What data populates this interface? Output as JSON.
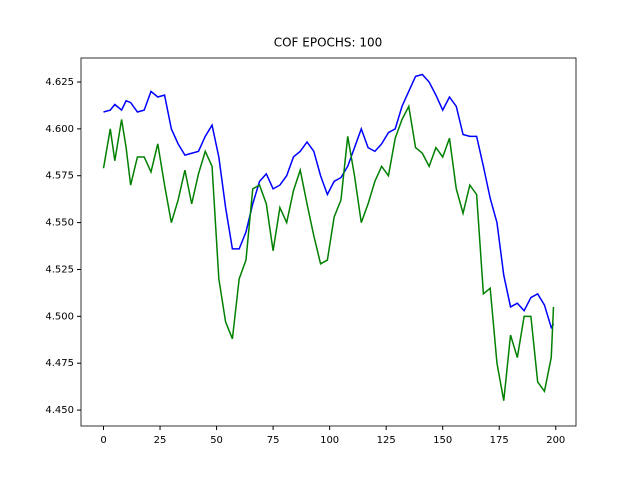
{
  "chart_data": {
    "type": "line",
    "title": "COF EPOCHS: 100",
    "x": [
      0,
      3,
      5,
      8,
      10,
      12,
      15,
      18,
      21,
      24,
      27,
      30,
      33,
      36,
      39,
      42,
      45,
      48,
      51,
      54,
      57,
      60,
      63,
      66,
      69,
      72,
      75,
      78,
      81,
      84,
      87,
      90,
      93,
      96,
      99,
      102,
      105,
      108,
      111,
      114,
      117,
      120,
      123,
      126,
      129,
      132,
      135,
      138,
      141,
      144,
      147,
      150,
      153,
      156,
      159,
      162,
      165,
      168,
      171,
      174,
      177,
      180,
      183,
      186,
      189,
      192,
      195,
      198,
      199
    ],
    "series": [
      {
        "color": "#0000ff",
        "values": [
          4.609,
          4.61,
          4.613,
          4.61,
          4.615,
          4.614,
          4.609,
          4.61,
          4.62,
          4.617,
          4.618,
          4.6,
          4.592,
          4.586,
          4.587,
          4.588,
          4.596,
          4.602,
          4.585,
          4.558,
          4.536,
          4.536,
          4.545,
          4.56,
          4.572,
          4.576,
          4.568,
          4.57,
          4.575,
          4.585,
          4.588,
          4.593,
          4.588,
          4.575,
          4.565,
          4.572,
          4.574,
          4.58,
          4.59,
          4.6,
          4.59,
          4.588,
          4.592,
          4.598,
          4.6,
          4.612,
          4.62,
          4.628,
          4.629,
          4.625,
          4.618,
          4.61,
          4.617,
          4.612,
          4.597,
          4.596,
          4.596,
          4.58,
          4.563,
          4.55,
          4.522,
          4.505,
          4.507,
          4.503,
          4.51,
          4.512,
          4.506,
          4.494,
          4.496
        ]
      },
      {
        "color": "#008000",
        "values": [
          4.579,
          4.6,
          4.583,
          4.605,
          4.59,
          4.57,
          4.585,
          4.585,
          4.577,
          4.592,
          4.57,
          4.55,
          4.562,
          4.578,
          4.56,
          4.576,
          4.588,
          4.58,
          4.52,
          4.497,
          4.488,
          4.52,
          4.53,
          4.568,
          4.57,
          4.56,
          4.535,
          4.558,
          4.55,
          4.567,
          4.578,
          4.56,
          4.543,
          4.528,
          4.53,
          4.553,
          4.562,
          4.596,
          4.575,
          4.55,
          4.56,
          4.572,
          4.58,
          4.575,
          4.595,
          4.605,
          4.612,
          4.59,
          4.587,
          4.58,
          4.59,
          4.585,
          4.595,
          4.568,
          4.555,
          4.57,
          4.565,
          4.512,
          4.515,
          4.475,
          4.455,
          4.49,
          4.478,
          4.5,
          4.5,
          4.465,
          4.46,
          4.478,
          4.505
        ]
      }
    ],
    "xlim": [
      -9.95,
      208.95
    ],
    "xticks": [
      0,
      25,
      50,
      75,
      100,
      125,
      150,
      175,
      200
    ],
    "ylim": [
      4.4415,
      4.6378
    ],
    "yticks": [
      {
        "value": 4.45,
        "label": "4.450"
      },
      {
        "value": 4.475,
        "label": "4.475"
      },
      {
        "value": 4.5,
        "label": "4.500"
      },
      {
        "value": 4.525,
        "label": "4.525"
      },
      {
        "value": 4.55,
        "label": "4.550"
      },
      {
        "value": 4.575,
        "label": "4.575"
      },
      {
        "value": 4.6,
        "label": "4.600"
      },
      {
        "value": 4.625,
        "label": "4.625"
      }
    ]
  }
}
